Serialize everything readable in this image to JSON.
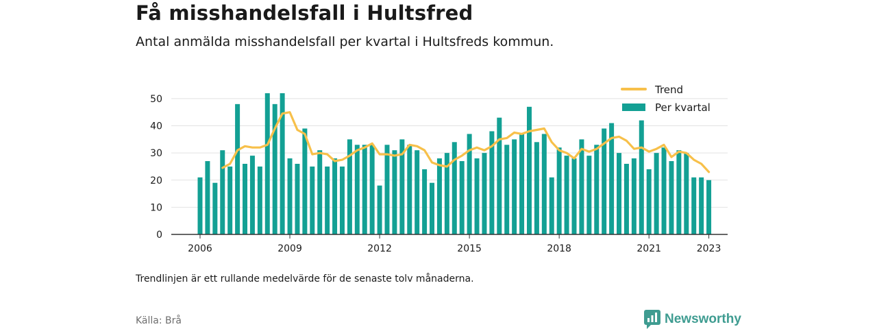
{
  "title": "Få misshandelsfall i Hultsfred",
  "subtitle": "Antal anmälda misshandelsfall per kvartal i Hultsfreds kommun.",
  "note": "Trendlinjen är ett rullande medelvärde för de senaste tolv månaderna.",
  "source": "Källa: Brå",
  "brand": {
    "name": "Newsworthy",
    "icon": "newsworthy-logo-icon",
    "color": "#3f9c91"
  },
  "colors": {
    "bar": "#13a094",
    "trend": "#f7c04a",
    "grid": "#e2e2e2",
    "axis": "#333333"
  },
  "chart_data": {
    "type": "bar",
    "x_start": "2006 Q1",
    "frequency": "quarterly",
    "xticks": [
      "2006",
      "2009",
      "2012",
      "2015",
      "2018",
      "2021",
      "2023"
    ],
    "yticks": [
      0,
      10,
      20,
      30,
      40,
      50
    ],
    "ylim": [
      0,
      52
    ],
    "legend_position": "top-right",
    "grid": true,
    "series": [
      {
        "name": "Per kvartal",
        "type": "bar",
        "values": [
          21,
          27,
          19,
          31,
          25,
          48,
          26,
          29,
          25,
          52,
          48,
          52,
          28,
          26,
          39,
          25,
          31,
          25,
          28,
          25,
          35,
          33,
          33,
          33,
          18,
          33,
          31,
          35,
          33,
          31,
          24,
          19,
          28,
          30,
          34,
          27,
          37,
          28,
          30,
          38,
          43,
          33,
          35,
          37,
          47,
          34,
          37,
          21,
          32,
          29,
          28,
          35,
          29,
          33,
          39,
          41,
          30,
          26,
          28,
          42,
          24,
          30,
          32,
          27,
          31,
          30,
          21,
          21,
          20
        ]
      },
      {
        "name": "Trend",
        "type": "line",
        "values": [
          null,
          null,
          null,
          24.5,
          26,
          31,
          32.5,
          32,
          32,
          33,
          39,
          44.5,
          45,
          38.5,
          37,
          29.5,
          30,
          29.5,
          27,
          27.5,
          29,
          31,
          32,
          33.5,
          29.5,
          29.5,
          29,
          29.5,
          33,
          32.5,
          31,
          26.5,
          25.5,
          25,
          27.5,
          29,
          31,
          32,
          31,
          32.5,
          35,
          35.5,
          37.5,
          37,
          38,
          38.5,
          39,
          34,
          31,
          30,
          28,
          31.5,
          30.5,
          31.5,
          33.5,
          35.5,
          36,
          34.5,
          31.5,
          32,
          30.5,
          31.5,
          33,
          28.5,
          30.5,
          30,
          27.5,
          26,
          23
        ]
      }
    ]
  }
}
